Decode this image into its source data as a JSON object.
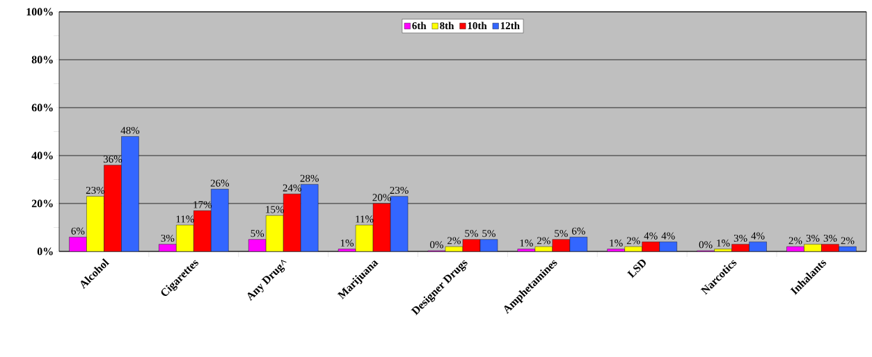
{
  "chart_data": {
    "type": "bar",
    "categories": [
      "Alcohol",
      "Cigarettes",
      "Any Drug^",
      "Marijuana",
      "Designer Drugs",
      "Amphetamines",
      "LSD",
      "Narcotics",
      "Inhalants"
    ],
    "series": [
      {
        "name": "6th",
        "color": "#ff00ff",
        "values": [
          6,
          3,
          5,
          1,
          0.3,
          1,
          1,
          0.3,
          2
        ],
        "value_labels": [
          "6%",
          "3%",
          "5%",
          "1%",
          "0%",
          "1%",
          "1%",
          "0%",
          "2%"
        ]
      },
      {
        "name": "8th",
        "color": "#ffff00",
        "values": [
          23,
          11,
          15,
          11,
          2,
          2,
          2,
          1,
          3
        ],
        "value_labels": [
          "23%",
          "11%",
          "15%",
          "11%",
          "2%",
          "2%",
          "2%",
          "1%",
          "3%"
        ]
      },
      {
        "name": "10th",
        "color": "#ff0000",
        "values": [
          36,
          17,
          24,
          20,
          5,
          5,
          4,
          3,
          3
        ],
        "value_labels": [
          "36%",
          "17%",
          "24%",
          "20%",
          "5%",
          "5%",
          "4%",
          "3%",
          "3%"
        ]
      },
      {
        "name": "12th",
        "color": "#3366ff",
        "values": [
          48,
          26,
          28,
          23,
          5,
          6,
          4,
          4,
          2
        ],
        "value_labels": [
          "48%",
          "26%",
          "28%",
          "23%",
          "5%",
          "6%",
          "4%",
          "4%",
          "2%"
        ]
      }
    ],
    "ylim": [
      0,
      100
    ],
    "yticks": [
      {
        "value": 0,
        "label": "0%"
      },
      {
        "value": 20,
        "label": "20%"
      },
      {
        "value": 40,
        "label": "40%"
      },
      {
        "value": 60,
        "label": "60%"
      },
      {
        "value": 80,
        "label": "80%"
      },
      {
        "value": 100,
        "label": "100%"
      }
    ],
    "grid": "y",
    "legend": "top"
  }
}
